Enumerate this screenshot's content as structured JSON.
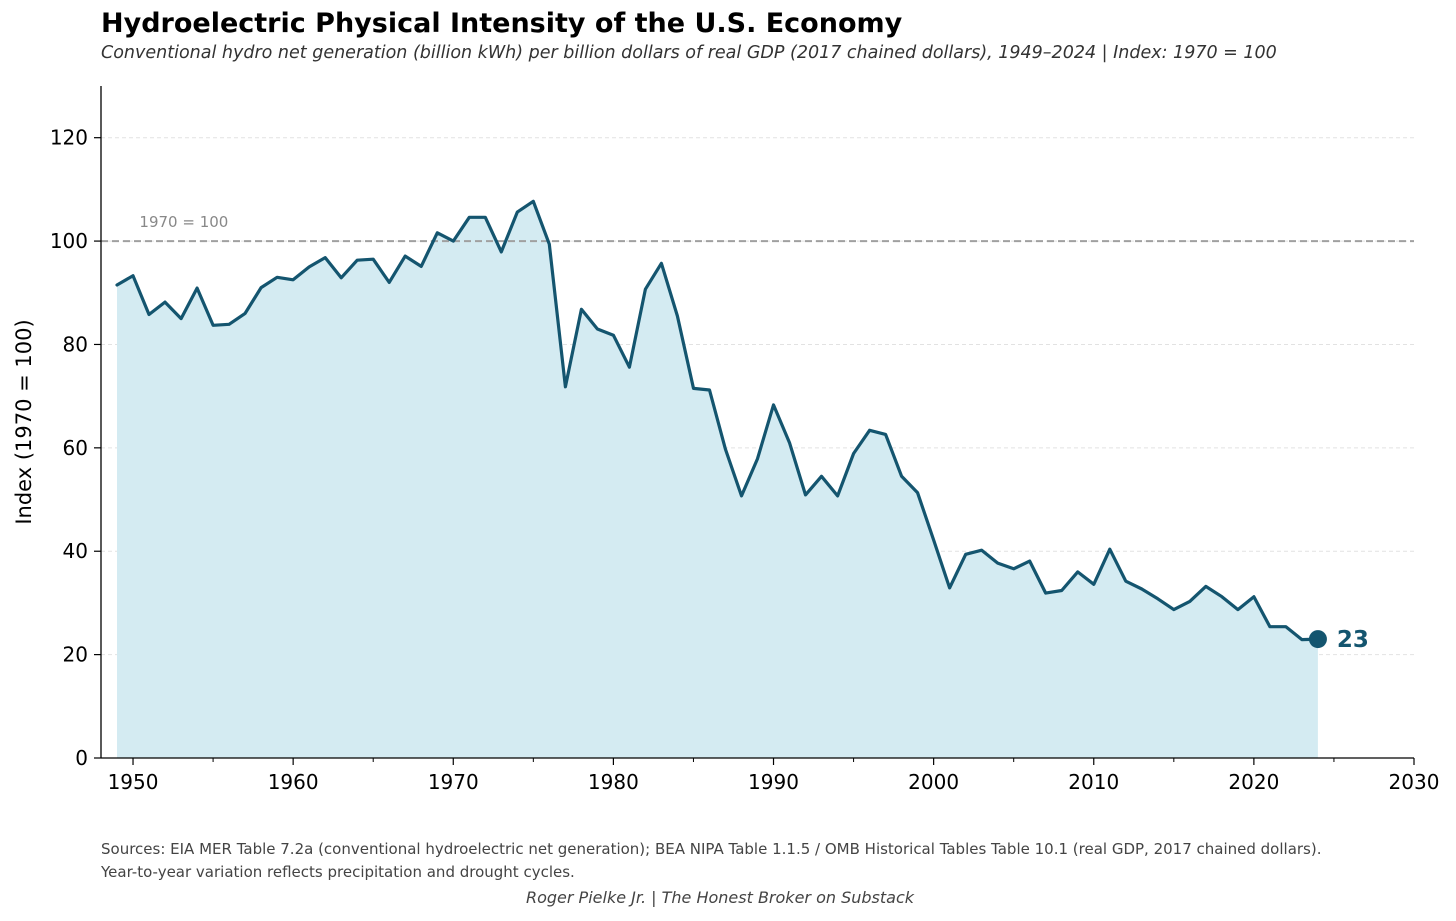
{
  "chart_data": {
    "type": "area",
    "title": "Hydroelectric Physical Intensity of the U.S. Economy",
    "subtitle": "Conventional hydro net generation (billion kWh) per billion dollars of real GDP (2017 chained dollars), 1949–2024  |  Index: 1970 = 100",
    "xlabel": "",
    "ylabel": "Index (1970 = 100)",
    "xlim": [
      1948,
      2030
    ],
    "ylim": [
      0,
      130
    ],
    "xticks": [
      "1950",
      "1960",
      "1970",
      "1980",
      "1990",
      "2000",
      "2010",
      "2020",
      "2030"
    ],
    "yticks": [
      "0",
      "20",
      "40",
      "60",
      "80",
      "100",
      "120"
    ],
    "grid": "horizontal dashed",
    "reference_line": {
      "value": 100,
      "label": "1970 = 100"
    },
    "end_label": "23",
    "colors": {
      "line": "#14556f",
      "fill": "#d4ebf2",
      "reference": "#a0a0a0"
    },
    "series": [
      {
        "x": [
          1949,
          1950,
          1951,
          1952,
          1953,
          1954,
          1955,
          1956,
          1957,
          1958,
          1959,
          1960,
          1961,
          1962,
          1963,
          1964,
          1965,
          1966,
          1967,
          1968,
          1969,
          1970,
          1971,
          1972,
          1973,
          1974,
          1975,
          1976,
          1977,
          1978,
          1979,
          1980,
          1981,
          1982,
          1983,
          1984,
          1985,
          1986,
          1987,
          1988,
          1989,
          1990,
          1991,
          1992,
          1993,
          1994,
          1995,
          1996,
          1997,
          1998,
          1999,
          2000,
          2001,
          2002,
          2003,
          2004,
          2005,
          2006,
          2007,
          2008,
          2009,
          2010,
          2011,
          2012,
          2013,
          2014,
          2015,
          2016,
          2017,
          2018,
          2019,
          2020,
          2021,
          2022,
          2023,
          2024
        ],
        "values": [
          91.5,
          93.3,
          85.8,
          88.2,
          85.0,
          90.9,
          83.7,
          83.9,
          86.0,
          91.0,
          93.0,
          92.5,
          95.0,
          96.8,
          92.9,
          96.3,
          96.5,
          92.0,
          97.1,
          95.1,
          101.6,
          100.0,
          104.6,
          104.6,
          97.9,
          105.6,
          107.7,
          99.4,
          71.8,
          86.8,
          83.0,
          81.8,
          75.6,
          90.7,
          95.7,
          85.5,
          71.5,
          71.2,
          59.7,
          50.7,
          57.9,
          68.3,
          61.0,
          50.9,
          54.5,
          50.7,
          58.9,
          63.4,
          62.6,
          54.5,
          51.3,
          42.2,
          32.9,
          39.4,
          40.2,
          37.7,
          36.6,
          38.1,
          31.9,
          32.4,
          36.0,
          33.6,
          40.4,
          34.2,
          32.7,
          30.8,
          28.7,
          30.3,
          33.2,
          31.2,
          28.7,
          31.2,
          25.4,
          25.4,
          22.9,
          23.0
        ]
      }
    ]
  },
  "footer": {
    "sources_line1": "Sources: EIA MER Table 7.2a (conventional hydroelectric net generation); BEA NIPA Table 1.1.5 / OMB Historical Tables Table 10.1 (real GDP, 2017 chained dollars).",
    "sources_line2": "Year-to-year variation reflects precipitation and drought cycles.",
    "credit": "Roger Pielke Jr.  |  The Honest Broker on Substack"
  }
}
